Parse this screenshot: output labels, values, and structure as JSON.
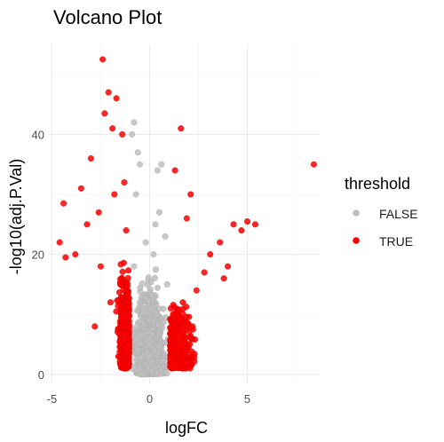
{
  "chart_data": {
    "type": "scatter",
    "title": "Volcano Plot",
    "xlabel": "logFC",
    "ylabel": "-log10(adj.P.Val)",
    "xlim": [
      -5.2,
      8.7
    ],
    "ylim": [
      -1.5,
      55
    ],
    "x_ticks": [
      -5,
      0,
      5
    ],
    "y_ticks": [
      0,
      20,
      40
    ],
    "grid": true,
    "legend": {
      "title": "threshold",
      "position": "right",
      "entries": [
        {
          "label": "FALSE",
          "color": "#BEBEBE"
        },
        {
          "label": "TRUE",
          "color": "#FF0000"
        }
      ]
    },
    "series": [
      {
        "name": "FALSE",
        "color": "#BEBEBE",
        "description": "Points with |logFC| < ~1 or low significance; dense central column from y 0 to ~42",
        "points": [
          [
            -0.8,
            42
          ],
          [
            -0.9,
            40
          ],
          [
            -0.6,
            37
          ],
          [
            -0.5,
            35
          ],
          [
            0.4,
            34
          ],
          [
            0.6,
            35
          ],
          [
            -0.7,
            30
          ],
          [
            0.5,
            27
          ],
          [
            0.3,
            25
          ],
          [
            -0.2,
            22
          ],
          [
            0.2,
            20
          ],
          [
            0.8,
            23
          ],
          [
            -0.8,
            18
          ],
          [
            0.9,
            15
          ],
          [
            -0.5,
            12
          ],
          [
            0.4,
            10
          ],
          [
            0,
            5
          ],
          [
            0.1,
            2
          ],
          [
            -0.1,
            1
          ]
        ]
      },
      {
        "name": "TRUE",
        "color": "#FF0000",
        "description": "Significant points with |logFC| > ~1; left wing to logFC ~-4.5, right wing to ~5.5 plus outlier",
        "points": [
          [
            -2.4,
            52.5
          ],
          [
            -2.1,
            47
          ],
          [
            -1.7,
            46
          ],
          [
            -2.3,
            43.5
          ],
          [
            -1.9,
            41
          ],
          [
            -1.4,
            40
          ],
          [
            -3.0,
            36
          ],
          [
            -3.5,
            31
          ],
          [
            -4.4,
            28.5
          ],
          [
            -4.6,
            22
          ],
          [
            -4.3,
            19.5
          ],
          [
            -3.8,
            20
          ],
          [
            -3.2,
            25
          ],
          [
            -2.6,
            27
          ],
          [
            -1.8,
            30
          ],
          [
            -1.3,
            32
          ],
          [
            -1.2,
            24
          ],
          [
            -1.5,
            15
          ],
          [
            -2.0,
            12
          ],
          [
            -2.8,
            8
          ],
          [
            -1.1,
            5
          ],
          [
            -1.6,
            3
          ],
          [
            -2.5,
            18
          ],
          [
            1.6,
            41
          ],
          [
            1.3,
            34
          ],
          [
            2.1,
            30
          ],
          [
            1.9,
            26
          ],
          [
            4.3,
            25
          ],
          [
            5.0,
            25.5
          ],
          [
            5.4,
            25
          ],
          [
            4.7,
            24
          ],
          [
            3.6,
            22
          ],
          [
            3.1,
            20
          ],
          [
            4.0,
            18
          ],
          [
            3.8,
            16
          ],
          [
            2.8,
            17
          ],
          [
            2.4,
            14
          ],
          [
            1.7,
            12
          ],
          [
            1.2,
            10
          ],
          [
            2.2,
            8
          ],
          [
            1.5,
            6
          ],
          [
            1.1,
            4
          ],
          [
            1.9,
            2
          ],
          [
            8.4,
            35
          ]
        ]
      }
    ]
  }
}
